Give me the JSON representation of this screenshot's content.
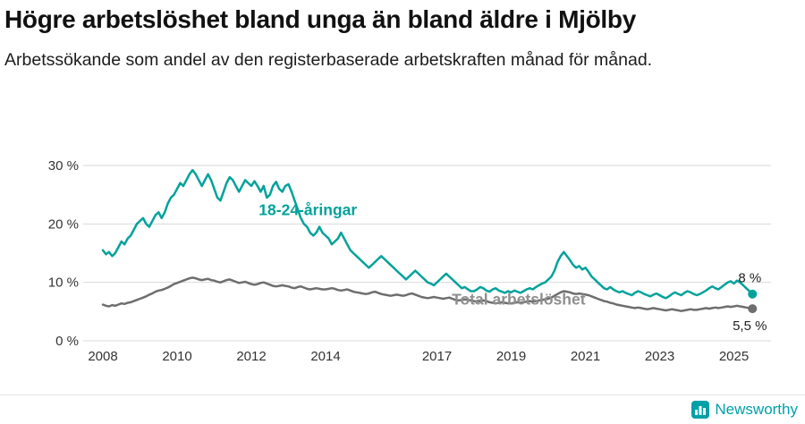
{
  "header": {
    "title": "Högre arbetslöshet bland unga än bland äldre i Mjölby",
    "subtitle": "Arbetssökande som andel av den registerbaserade arbetskraften månad för månad."
  },
  "footer": {
    "brand": "Newsworthy",
    "icon": "newsworthy-bar-chart-icon",
    "brand_color": "#00a0a8"
  },
  "colors": {
    "young_line": "#00a29b",
    "total_line": "#6e6e6e",
    "total_label": "#8f8f8f",
    "grid": "#d9d9d9",
    "axis_text": "#333333",
    "end_label_text": "#222222"
  },
  "chart_data": {
    "type": "line",
    "title": "Högre arbetslöshet bland unga än bland äldre i Mjölby",
    "subtitle": "Arbetssökande som andel av den registerbaserade arbetskraften månad för månad.",
    "frequency": "monthly",
    "x_start_year": 2008,
    "x_start_month": 1,
    "x_ticks": [
      2008,
      2010,
      2012,
      2014,
      2017,
      2019,
      2021,
      2023,
      2025
    ],
    "y_ticks": [
      0,
      10,
      20,
      30
    ],
    "y_suffix": " %",
    "ylim": [
      0,
      32
    ],
    "grid": true,
    "legend_position": "inline-annotations",
    "series": [
      {
        "name": "18-24-åringar",
        "color": "#00a29b",
        "label_color": "#00a29b",
        "label_x": 2012.2,
        "label_y": 21.5,
        "end_label": "8 %",
        "end_label_pos": "above",
        "values": [
          15.5,
          14.8,
          15.2,
          14.5,
          15.0,
          16.0,
          17.0,
          16.5,
          17.5,
          18.0,
          19.0,
          20.0,
          20.5,
          21.0,
          20.0,
          19.5,
          20.5,
          21.5,
          22.0,
          21.0,
          22.0,
          23.5,
          24.5,
          25.0,
          26.0,
          27.0,
          26.5,
          27.5,
          28.5,
          29.2,
          28.5,
          27.5,
          26.5,
          27.5,
          28.5,
          27.5,
          26.0,
          24.5,
          24.0,
          25.5,
          27.0,
          28.0,
          27.5,
          26.5,
          25.5,
          26.5,
          27.5,
          27.0,
          26.5,
          27.3,
          26.5,
          25.5,
          26.5,
          24.5,
          25.0,
          26.5,
          27.2,
          26.0,
          25.5,
          26.5,
          26.8,
          25.5,
          24.0,
          22.5,
          21.0,
          20.0,
          19.5,
          18.5,
          18.0,
          18.5,
          19.5,
          18.5,
          18.0,
          17.5,
          16.5,
          17.0,
          17.5,
          18.5,
          17.5,
          16.5,
          15.5,
          15.0,
          14.5,
          14.0,
          13.5,
          13.0,
          12.5,
          13.0,
          13.5,
          14.0,
          14.5,
          14.0,
          13.5,
          13.0,
          12.5,
          12.0,
          11.5,
          11.0,
          10.5,
          11.0,
          11.5,
          12.0,
          11.5,
          11.0,
          10.5,
          10.0,
          9.8,
          9.5,
          10.0,
          10.5,
          11.0,
          11.5,
          11.0,
          10.5,
          10.0,
          9.5,
          9.0,
          9.2,
          8.8,
          8.5,
          8.5,
          8.8,
          9.2,
          9.0,
          8.6,
          8.4,
          8.8,
          9.0,
          8.6,
          8.4,
          8.2,
          8.5,
          8.3,
          8.6,
          8.4,
          8.2,
          8.5,
          8.8,
          9.0,
          8.8,
          9.2,
          9.5,
          9.8,
          10.0,
          10.5,
          11.0,
          12.0,
          13.5,
          14.5,
          15.2,
          14.5,
          13.8,
          13.0,
          12.5,
          12.8,
          12.2,
          12.5,
          11.8,
          11.0,
          10.5,
          10.0,
          9.5,
          9.0,
          8.8,
          9.2,
          8.8,
          8.5,
          8.3,
          8.5,
          8.2,
          8.0,
          7.8,
          8.2,
          8.5,
          8.3,
          8.0,
          7.8,
          7.6,
          7.9,
          8.1,
          7.8,
          7.5,
          7.3,
          7.6,
          8.0,
          8.3,
          8.0,
          7.8,
          8.2,
          8.5,
          8.3,
          8.0,
          7.8,
          8.0,
          8.3,
          8.6,
          9.0,
          9.3,
          9.0,
          8.8,
          9.2,
          9.6,
          10.0,
          10.2,
          9.8,
          10.3,
          10.0,
          9.5,
          9.0,
          8.5,
          8.0
        ]
      },
      {
        "name": "Total arbetslöshet",
        "color": "#6e6e6e",
        "label_color": "#8f8f8f",
        "label_x": 2017.4,
        "label_y": 6.2,
        "end_label": "5,5 %",
        "end_label_pos": "below",
        "values": [
          6.2,
          6.0,
          5.9,
          6.1,
          6.0,
          6.2,
          6.4,
          6.3,
          6.5,
          6.6,
          6.8,
          7.0,
          7.2,
          7.4,
          7.6,
          7.9,
          8.1,
          8.4,
          8.6,
          8.7,
          8.9,
          9.1,
          9.4,
          9.7,
          9.9,
          10.1,
          10.3,
          10.5,
          10.7,
          10.8,
          10.7,
          10.5,
          10.4,
          10.5,
          10.6,
          10.4,
          10.3,
          10.1,
          10.0,
          10.2,
          10.4,
          10.5,
          10.3,
          10.1,
          9.9,
          10.0,
          10.1,
          9.9,
          9.7,
          9.6,
          9.7,
          9.9,
          10.0,
          9.8,
          9.6,
          9.4,
          9.3,
          9.4,
          9.5,
          9.4,
          9.3,
          9.1,
          9.0,
          9.2,
          9.3,
          9.1,
          8.9,
          8.8,
          8.9,
          9.0,
          8.9,
          8.8,
          8.8,
          8.9,
          9.0,
          8.9,
          8.7,
          8.6,
          8.7,
          8.8,
          8.6,
          8.4,
          8.3,
          8.2,
          8.1,
          8.0,
          8.1,
          8.3,
          8.4,
          8.2,
          8.0,
          7.9,
          7.8,
          7.7,
          7.8,
          7.9,
          7.8,
          7.7,
          7.8,
          8.0,
          8.1,
          7.9,
          7.7,
          7.5,
          7.4,
          7.3,
          7.4,
          7.5,
          7.4,
          7.3,
          7.2,
          7.3,
          7.4,
          7.2,
          7.0,
          6.9,
          7.0,
          7.1,
          7.0,
          6.9,
          6.8,
          6.7,
          6.8,
          6.9,
          6.8,
          6.6,
          6.5,
          6.4,
          6.5,
          6.6,
          6.5,
          6.4,
          6.4,
          6.5,
          6.6,
          6.5,
          6.6,
          6.7,
          6.8,
          6.7,
          6.8,
          6.9,
          7.0,
          7.1,
          7.2,
          7.4,
          7.7,
          8.0,
          8.3,
          8.5,
          8.4,
          8.3,
          8.1,
          8.0,
          8.1,
          8.0,
          7.9,
          7.8,
          7.6,
          7.4,
          7.2,
          7.0,
          6.8,
          6.7,
          6.5,
          6.4,
          6.2,
          6.1,
          6.0,
          5.9,
          5.8,
          5.7,
          5.6,
          5.7,
          5.6,
          5.5,
          5.4,
          5.5,
          5.6,
          5.5,
          5.4,
          5.3,
          5.2,
          5.3,
          5.4,
          5.3,
          5.2,
          5.1,
          5.2,
          5.3,
          5.4,
          5.3,
          5.3,
          5.4,
          5.5,
          5.6,
          5.5,
          5.6,
          5.7,
          5.6,
          5.7,
          5.8,
          5.9,
          5.8,
          5.9,
          6.0,
          5.9,
          5.8,
          5.7,
          5.6,
          5.5
        ]
      }
    ]
  }
}
